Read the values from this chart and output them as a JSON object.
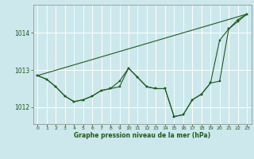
{
  "background_color": "#cde8ec",
  "plot_bg_color": "#cde8ec",
  "grid_color": "#ffffff",
  "line_color": "#1a5c1a",
  "marker_color": "#1a5c1a",
  "xlabel": "Graphe pression niveau de la mer (hPa)",
  "ylim": [
    1011.55,
    1014.75
  ],
  "xlim": [
    -0.5,
    23.5
  ],
  "yticks": [
    1012,
    1013,
    1014
  ],
  "xticks": [
    0,
    1,
    2,
    3,
    4,
    5,
    6,
    7,
    8,
    9,
    10,
    11,
    12,
    13,
    14,
    15,
    16,
    17,
    18,
    19,
    20,
    21,
    22,
    23
  ],
  "series": [
    {
      "x": [
        0,
        1,
        2,
        3,
        4,
        5,
        6,
        7,
        8,
        9,
        10,
        11,
        12,
        13,
        14,
        15,
        16,
        17,
        18,
        19,
        20,
        21,
        22,
        23
      ],
      "y": [
        1012.85,
        1012.75,
        1012.55,
        1012.3,
        1012.15,
        1012.2,
        1012.3,
        1012.45,
        1012.5,
        1012.55,
        1013.05,
        1012.8,
        1012.55,
        1012.5,
        1012.5,
        1011.75,
        1011.8,
        1012.2,
        1012.35,
        1012.65,
        1012.7,
        1014.1,
        1014.3,
        1014.5
      ]
    },
    {
      "x": [
        0,
        1,
        2,
        3,
        4,
        5,
        6,
        7,
        8,
        9,
        10,
        11,
        12,
        13,
        14,
        15,
        16,
        17,
        18,
        19,
        20,
        21,
        22,
        23
      ],
      "y": [
        1012.85,
        1012.75,
        1012.55,
        1012.3,
        1012.15,
        1012.2,
        1012.3,
        1012.45,
        1012.5,
        1012.7,
        1013.05,
        1012.8,
        1012.55,
        1012.5,
        1012.5,
        1011.75,
        1011.8,
        1012.2,
        1012.35,
        1012.65,
        1013.8,
        1014.1,
        1014.35,
        1014.5
      ]
    },
    {
      "x": [
        0,
        23
      ],
      "y": [
        1012.85,
        1014.5
      ],
      "no_marker": true
    }
  ]
}
